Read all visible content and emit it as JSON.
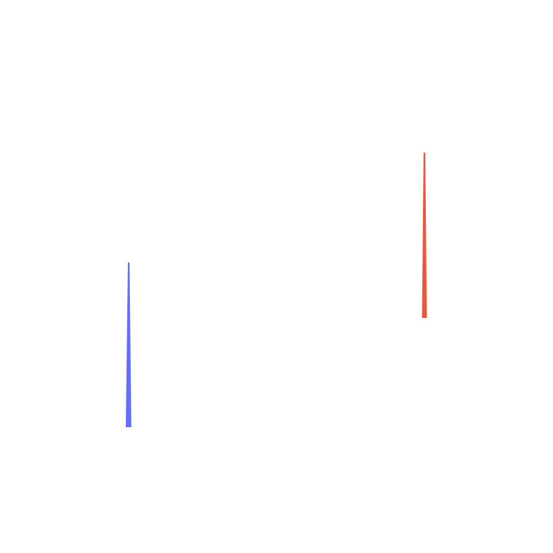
{
  "background": "#ffffff",
  "strokes": [
    {
      "name": "blue-stroke",
      "color": "#636efa"
    },
    {
      "name": "orange-stroke",
      "color": "#ef553b"
    }
  ]
}
